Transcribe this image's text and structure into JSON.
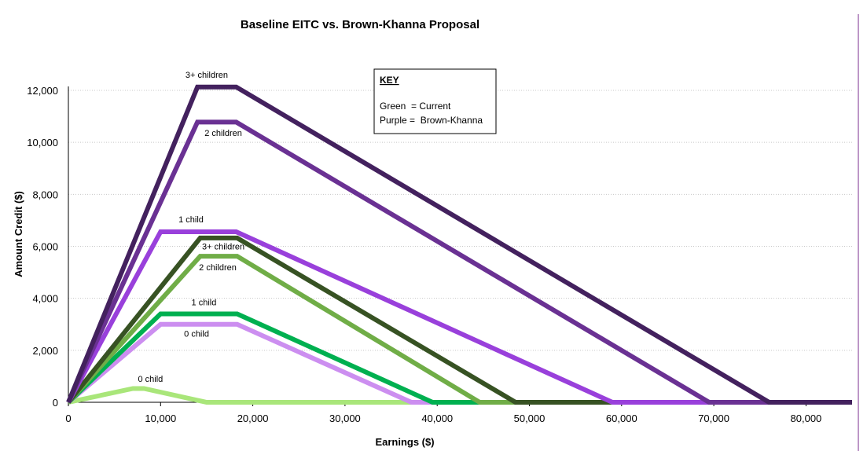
{
  "chart_data": {
    "type": "line",
    "title": "Baseline EITC vs. Brown-Khanna Proposal",
    "xlabel": "Earnings ($)",
    "ylabel": "Amount Credit ($)",
    "xlim": [
      0,
      85000
    ],
    "ylim": [
      0,
      12000
    ],
    "x_ticks": [
      0,
      10000,
      20000,
      30000,
      40000,
      50000,
      60000,
      70000,
      80000
    ],
    "x_tick_labels": [
      "0",
      "10,000",
      "20,000",
      "30,000",
      "40,000",
      "50,000",
      "60,000",
      "70,000",
      "80,000"
    ],
    "y_ticks": [
      0,
      2000,
      4000,
      6000,
      8000,
      10000,
      12000
    ],
    "y_tick_labels": [
      "0",
      "2,000",
      "4,000",
      "6,000",
      "8,000",
      "10,000",
      "12,000"
    ],
    "grid": "horizontal dotted",
    "key": {
      "title": "KEY",
      "lines": [
        "Green  = Current",
        "Purple =  Brown-Khanna"
      ]
    },
    "series": [
      {
        "label": "3+ children",
        "color": "#43215e",
        "points": [
          [
            0,
            0
          ],
          [
            14000,
            12130
          ],
          [
            18200,
            12130
          ],
          [
            76000,
            0
          ],
          [
            85000,
            0
          ]
        ]
      },
      {
        "label": "2 children",
        "color": "#6a3193",
        "points": [
          [
            0,
            0
          ],
          [
            14000,
            10780
          ],
          [
            18200,
            10780
          ],
          [
            69500,
            0
          ],
          [
            85000,
            0
          ]
        ]
      },
      {
        "label": "1 child",
        "color": "#9940db",
        "points": [
          [
            0,
            0
          ],
          [
            10000,
            6560
          ],
          [
            18200,
            6560
          ],
          [
            59000,
            0
          ],
          [
            85000,
            0
          ]
        ]
      },
      {
        "label": "3+ children",
        "color": "#375223",
        "points": [
          [
            0,
            0
          ],
          [
            14300,
            6320
          ],
          [
            18300,
            6320
          ],
          [
            48500,
            0
          ],
          [
            85000,
            0
          ]
        ]
      },
      {
        "label": "2 children",
        "color": "#70ad47",
        "points": [
          [
            0,
            0
          ],
          [
            14300,
            5620
          ],
          [
            18300,
            5620
          ],
          [
            44600,
            0
          ],
          [
            85000,
            0
          ]
        ]
      },
      {
        "label": "1 child",
        "color": "#00b050",
        "points": [
          [
            0,
            0
          ],
          [
            10000,
            3400
          ],
          [
            18300,
            3400
          ],
          [
            39500,
            0
          ],
          [
            85000,
            0
          ]
        ]
      },
      {
        "label": "0 child",
        "color": "#cc8ef0",
        "points": [
          [
            0,
            0
          ],
          [
            10000,
            3000
          ],
          [
            18300,
            3000
          ],
          [
            37200,
            0
          ],
          [
            85000,
            0
          ]
        ]
      },
      {
        "label": "0 child",
        "color": "#a9e67a",
        "points": [
          [
            0,
            0
          ],
          [
            7000,
            530
          ],
          [
            8200,
            530
          ],
          [
            15000,
            0
          ],
          [
            85000,
            0
          ]
        ]
      }
    ],
    "series_labels": [
      {
        "text": "3+ children",
        "x": 15000,
        "y": 12480
      },
      {
        "text": "2 children",
        "x": 16800,
        "y": 10250
      },
      {
        "text": "1 child",
        "x": 13300,
        "y": 6920
      },
      {
        "text": "3+ children",
        "x": 16800,
        "y": 5880
      },
      {
        "text": "2 children",
        "x": 16200,
        "y": 5080
      },
      {
        "text": "1 child",
        "x": 14700,
        "y": 3730
      },
      {
        "text": "0 child",
        "x": 13900,
        "y": 2520
      },
      {
        "text": "0 child",
        "x": 8900,
        "y": 790
      }
    ]
  }
}
